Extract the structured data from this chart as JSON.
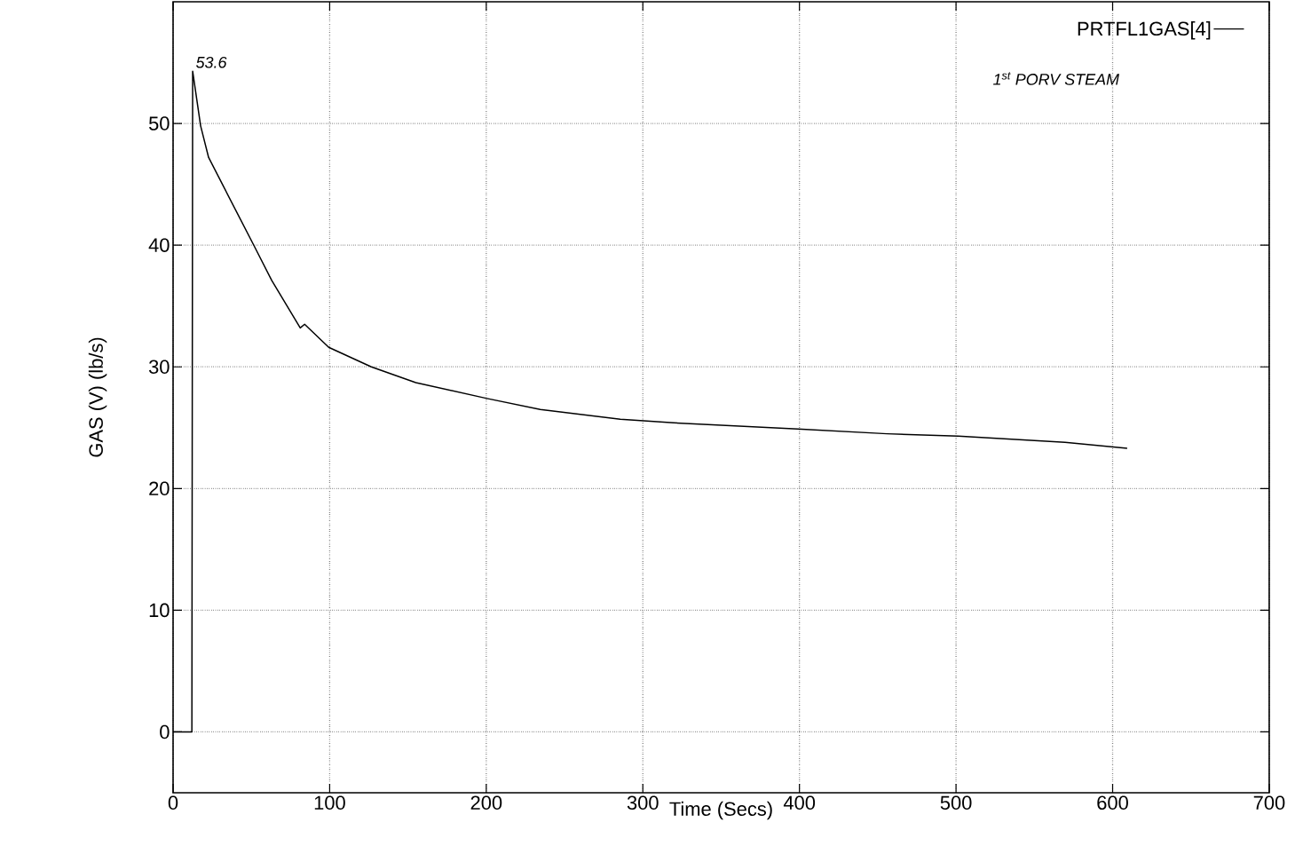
{
  "chart_data": {
    "type": "line",
    "xlabel": "Time (Secs)",
    "ylabel": "GAS (V) (lb/s)",
    "x": [
      0,
      12,
      12.5,
      17.6,
      22.7,
      51.1,
      63,
      81.2,
      84,
      99.4,
      126.6,
      155,
      200.5,
      234.5,
      285.6,
      319.7,
      399,
      456,
      501.4,
      569.6,
      609.3
    ],
    "series": [
      {
        "name": "PRTFL1GAS[4]",
        "color": "#000000",
        "values": [
          0,
          0,
          54.3,
          49.8,
          47.2,
          40.1,
          37.1,
          33.2,
          33.5,
          31.6,
          30,
          28.7,
          27.4,
          26.5,
          25.7,
          25.4,
          24.9,
          24.5,
          24.3,
          23.8,
          23.3
        ]
      }
    ],
    "annotations": [
      {
        "text": "53.6",
        "x": 12.5,
        "y": 54.3
      },
      "1$^{st}$ PORV STEAM"
    ],
    "xlim": [
      0,
      700
    ],
    "xticks": [
      0,
      100,
      200,
      300,
      400,
      500,
      600,
      700
    ],
    "ylim": [
      -5,
      60
    ],
    "yticks": [
      0,
      10,
      20,
      30,
      40,
      50
    ],
    "grid": true,
    "legend": "top right",
    "marker": "none",
    "line_style": "solid"
  }
}
